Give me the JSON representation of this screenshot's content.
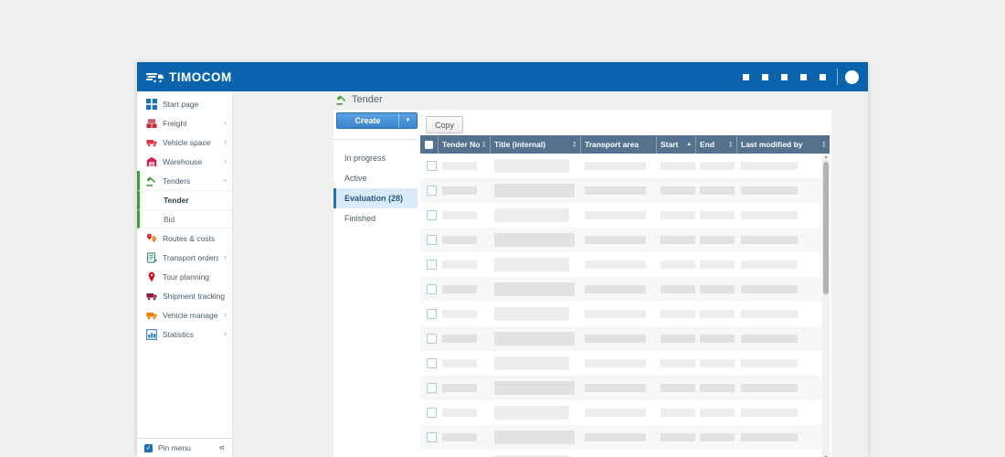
{
  "colors": {
    "header_blue": "#0a64ad",
    "table_header": "#54718e",
    "accent_green": "#3f9c35",
    "create_button_blue": "#4796dc",
    "selected_subnav_bg": "#d9eaf8",
    "selected_subnav_border": "#2a6fad",
    "sidebar_group_border": "#3f9c35"
  },
  "titlebar": {
    "brand": "TIMOCOM",
    "icons": [
      "app-square-icon",
      "app-square-icon",
      "app-square-icon",
      "app-square-icon",
      "app-square-icon"
    ],
    "avatar": "user-avatar"
  },
  "sidebar": {
    "items": [
      {
        "label": "Start page",
        "icon": "grid",
        "icon_color": "#1d70b7",
        "chevron": ""
      },
      {
        "label": "Freight",
        "icon": "crates",
        "icon_color": "#c2293a",
        "chevron": "›"
      },
      {
        "label": "Vehicle space",
        "icon": "truck",
        "icon_color": "#d63843",
        "chevron": "›"
      },
      {
        "label": "Warehouse",
        "icon": "warehouse",
        "icon_color": "#ce2456",
        "chevron": "›"
      },
      {
        "label": "Tenders",
        "icon": "gavel",
        "icon_color": "#3f9c35",
        "chevron": "v",
        "expanded": true,
        "grouped": true
      },
      {
        "label": "Tender",
        "sub": true,
        "selected": true,
        "grouped": true
      },
      {
        "label": "Bid",
        "sub": true,
        "last_sub": true,
        "grouped": true
      },
      {
        "label": "Routes & costs",
        "icon": "pins",
        "icon_color": "#e2001a",
        "chevron": ""
      },
      {
        "label": "Transport orders",
        "icon": "document",
        "icon_color": "#2e8b6f",
        "chevron": "›"
      },
      {
        "label": "Tour planning",
        "icon": "pin",
        "icon_color": "#e2001a",
        "chevron": ""
      },
      {
        "label": "Shipment tracking",
        "icon": "truck",
        "icon_color": "#8c1d40",
        "chevron": ""
      },
      {
        "label": "Vehicle management",
        "icon": "truck",
        "icon_color": "#ef7d00",
        "chevron": "›"
      },
      {
        "label": "Statistics",
        "icon": "chart",
        "icon_color": "#1d70b7",
        "chevron": "›"
      }
    ],
    "pin_menu": {
      "label": "Pin menu",
      "checked": true,
      "collapse_glyph": "«"
    }
  },
  "main": {
    "page_title": "Tender",
    "toolbar": {
      "create_label": "Create",
      "create_dropdown_glyph": "▼",
      "copy_label": "Copy"
    },
    "subnav": [
      {
        "label": "In progress",
        "selected": false
      },
      {
        "label": "Active",
        "selected": false
      },
      {
        "label": "Evaluation (28)",
        "selected": true
      },
      {
        "label": "Finished",
        "selected": false
      }
    ],
    "table": {
      "columns": [
        {
          "label": "",
          "type": "checkbox",
          "sort": ""
        },
        {
          "label": "Tender No.",
          "sort": "both"
        },
        {
          "label": "Title (internal)",
          "sort": "both"
        },
        {
          "label": "Transport area",
          "sort": ""
        },
        {
          "label": "Start",
          "sort": "asc"
        },
        {
          "label": "End",
          "sort": "both"
        },
        {
          "label": "Last modified by",
          "sort": "both"
        }
      ],
      "skeleton_rows": [
        {
          "variant": "a"
        },
        {
          "variant": "b"
        },
        {
          "variant": "a"
        },
        {
          "variant": "b"
        },
        {
          "variant": "a"
        },
        {
          "variant": "b"
        },
        {
          "variant": "a"
        },
        {
          "variant": "b"
        },
        {
          "variant": "a"
        },
        {
          "variant": "b"
        },
        {
          "variant": "a"
        },
        {
          "variant": "b"
        },
        {
          "variant": "a"
        }
      ]
    }
  }
}
